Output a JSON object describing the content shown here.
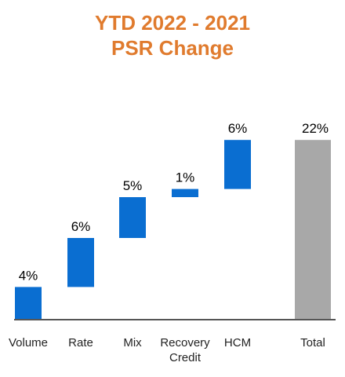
{
  "chart_data": {
    "type": "bar",
    "subtype": "waterfall",
    "title": [
      "YTD 2022 - 2021",
      "PSR Change"
    ],
    "categories": [
      [
        "Volume"
      ],
      [
        "Rate"
      ],
      [
        "Mix"
      ],
      [
        "Recovery",
        "Credit"
      ],
      [
        "HCM"
      ],
      [
        "Total"
      ]
    ],
    "values": [
      4,
      6,
      5,
      1,
      6,
      22
    ],
    "data_labels": [
      "4%",
      "6%",
      "5%",
      "1%",
      "6%",
      "22%"
    ],
    "is_total": [
      false,
      false,
      false,
      false,
      false,
      true
    ],
    "colors": {
      "increment": "#0A6ED1",
      "total": "#A8A8A8",
      "title": "#E07B2E",
      "baseline": "#555555"
    },
    "xlabel": "",
    "ylabel": "",
    "grid": false,
    "legend": "none"
  }
}
